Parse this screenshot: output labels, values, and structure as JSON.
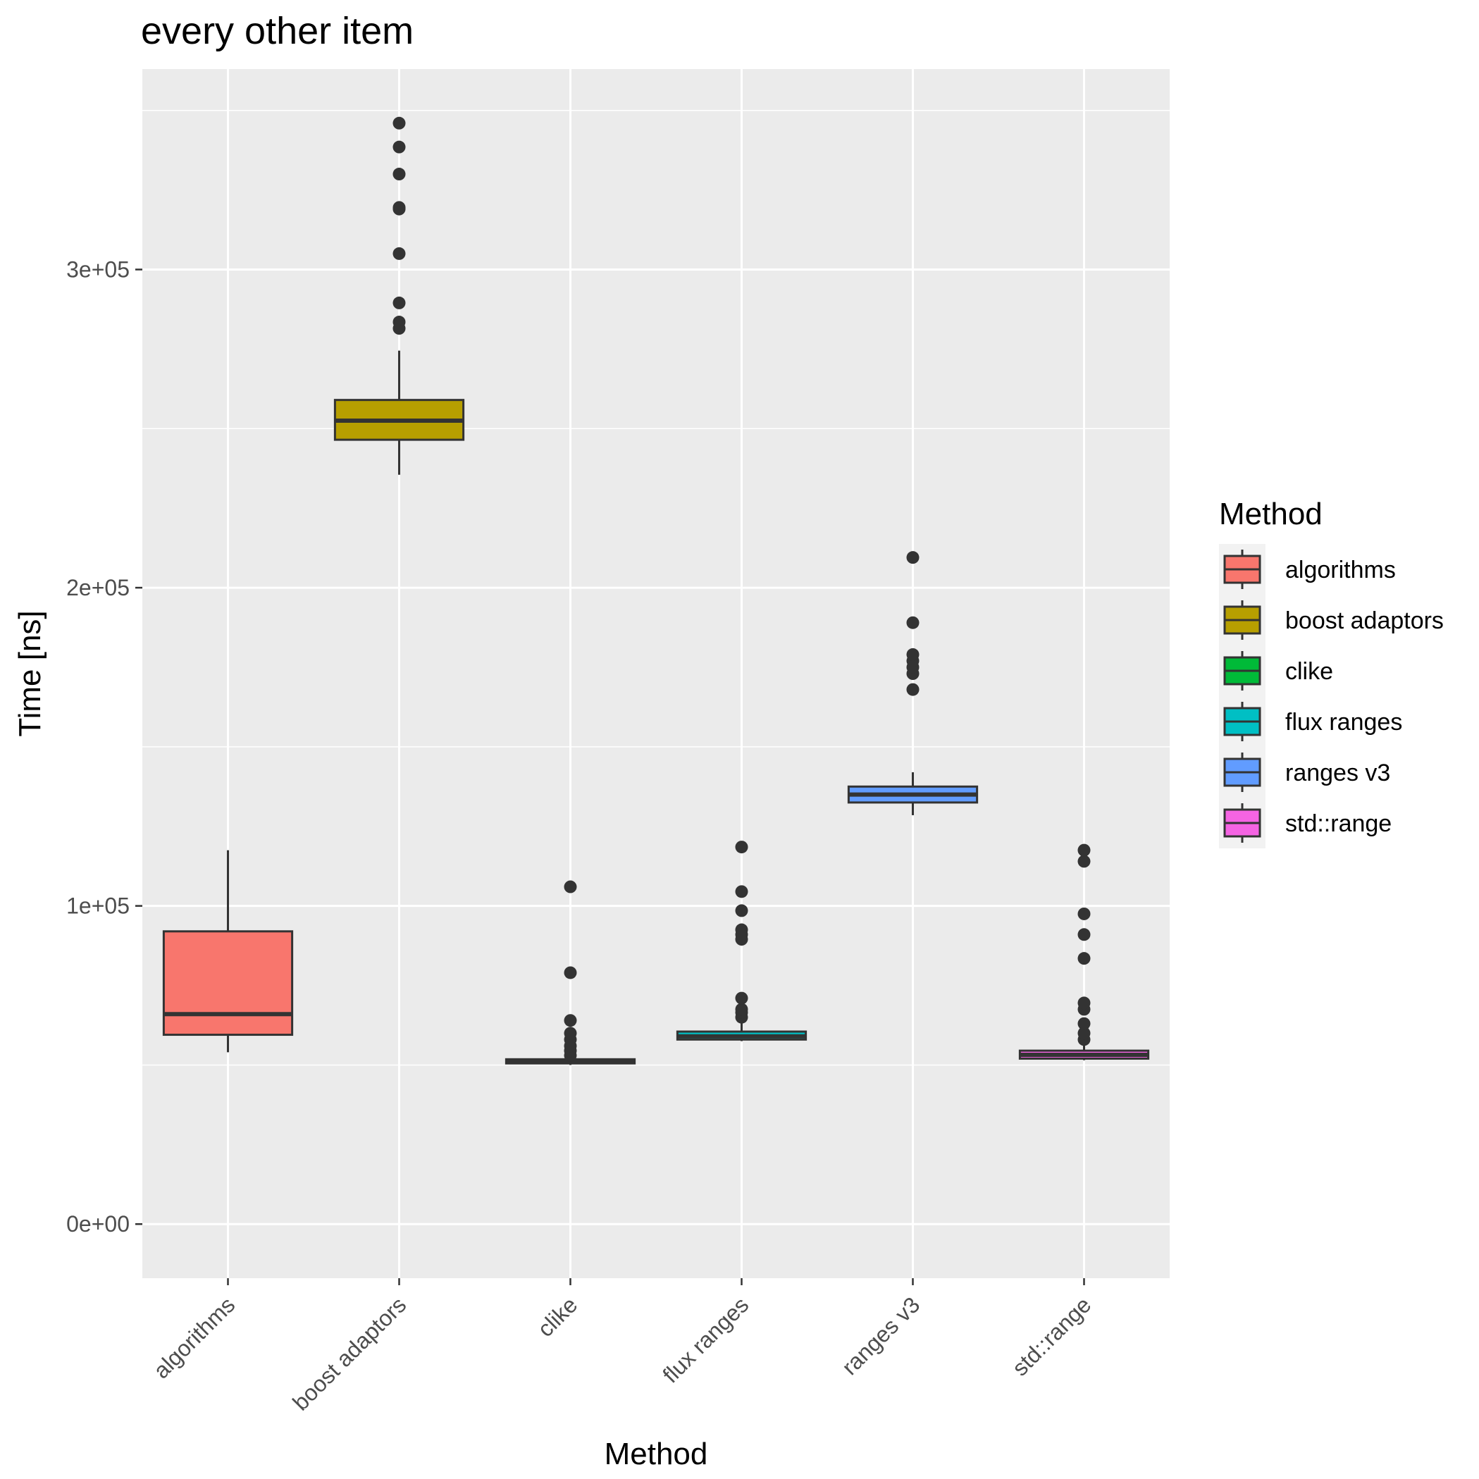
{
  "chart_data": {
    "type": "box",
    "title": "every other item",
    "xlabel": "Method",
    "ylabel": "Time [ns]",
    "categories": [
      "algorithms",
      "boost adaptors",
      "clike",
      "flux ranges",
      "ranges v3",
      "std::range"
    ],
    "ylim": [
      -17000,
      363000
    ],
    "yticks": [
      0,
      100000,
      200000,
      300000
    ],
    "ytick_labels": [
      "0e+00",
      "1e+05",
      "2e+05",
      "3e+05"
    ],
    "grid": true,
    "legend": {
      "title": "Method",
      "position": "right"
    },
    "colors": [
      "#F8766D",
      "#B79F00",
      "#00BA38",
      "#00BFC4",
      "#619CFF",
      "#F564E3"
    ],
    "boxes": [
      {
        "name": "algorithms",
        "whisker_low": 54000,
        "q1": 59500,
        "median": 66000,
        "q3": 92000,
        "whisker_high": 117500,
        "outliers": []
      },
      {
        "name": "boost adaptors",
        "whisker_low": 235500,
        "q1": 246500,
        "median": 252500,
        "q3": 259000,
        "whisker_high": 274500,
        "outliers": [
          281500,
          283500,
          289500,
          305000,
          319000,
          319500,
          330000,
          338500,
          346000
        ]
      },
      {
        "name": "clike",
        "whisker_low": 50000,
        "q1": 50500,
        "median": 51000,
        "q3": 51800,
        "whisker_high": 52000,
        "outliers": [
          53000,
          54500,
          56000,
          58000,
          60000,
          64000,
          79000,
          106000
        ]
      },
      {
        "name": "flux ranges",
        "whisker_low": 57500,
        "q1": 58000,
        "median": 59000,
        "q3": 60500,
        "whisker_high": 63500,
        "outliers": [
          65000,
          66500,
          67500,
          71000,
          89500,
          91000,
          92500,
          98500,
          104500,
          118500
        ]
      },
      {
        "name": "ranges v3",
        "whisker_low": 128500,
        "q1": 132500,
        "median": 135000,
        "q3": 137500,
        "whisker_high": 142000,
        "outliers": [
          168000,
          173000,
          175000,
          177000,
          179000,
          189000,
          209500
        ]
      },
      {
        "name": "std::range",
        "whisker_low": 51500,
        "q1": 52000,
        "median": 53200,
        "q3": 54500,
        "whisker_high": 57000,
        "outliers": [
          58000,
          60000,
          63000,
          67500,
          69500,
          83500,
          91000,
          97500,
          114000,
          117500
        ]
      }
    ]
  }
}
